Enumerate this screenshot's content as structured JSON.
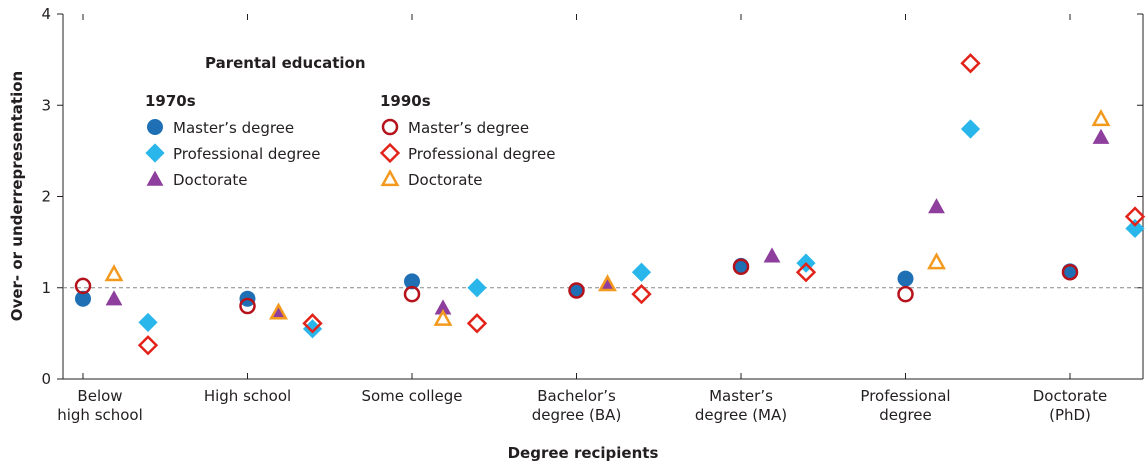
{
  "chart_data": {
    "type": "scatter",
    "x_label": "Degree recipients",
    "y_label": "Over- or underrepresentation",
    "categories": [
      "Below\nhigh school",
      "High school",
      "Some college",
      "Bachelor’s\ndegree (BA)",
      "Master’s\ndegree (MA)",
      "Professional\ndegree",
      "Doctorate\n(PhD)"
    ],
    "ylim": [
      0,
      4
    ],
    "yticks": [
      0,
      1,
      2,
      3,
      4
    ],
    "reference_line": 1,
    "legend": {
      "title": "Parental education",
      "groups": [
        {
          "label": "1970s",
          "series": [
            0,
            1,
            2
          ]
        },
        {
          "label": "1990s",
          "series": [
            3,
            4,
            5
          ]
        }
      ]
    },
    "series": [
      {
        "name": "Master’s degree",
        "marker": "circle",
        "filled": true,
        "color": "#1f6fb4",
        "values": [
          0.88,
          0.88,
          1.07,
          0.97,
          1.24,
          1.1,
          1.18
        ]
      },
      {
        "name": "Professional degree",
        "marker": "diamond",
        "filled": true,
        "color": "#29b6ea",
        "values": [
          0.62,
          0.55,
          1.0,
          1.17,
          1.27,
          2.74,
          1.65
        ]
      },
      {
        "name": "Doctorate",
        "marker": "triangle",
        "filled": true,
        "color": "#8e3e9c",
        "values": [
          0.88,
          0.73,
          0.78,
          1.04,
          1.35,
          1.89,
          2.65
        ]
      },
      {
        "name": "Master’s degree",
        "marker": "circle",
        "filled": false,
        "color": "#b5121b",
        "values": [
          1.02,
          0.8,
          0.93,
          0.97,
          1.23,
          0.93,
          1.17
        ]
      },
      {
        "name": "Professional degree",
        "marker": "diamond",
        "filled": false,
        "color": "#e2231a",
        "values": [
          0.37,
          0.61,
          0.61,
          0.93,
          1.17,
          3.46,
          1.78
        ]
      },
      {
        "name": "Doctorate",
        "marker": "triangle",
        "filled": false,
        "color": "#f39a1e",
        "values": [
          1.15,
          0.73,
          0.66,
          1.04,
          null,
          1.28,
          2.85
        ]
      }
    ]
  }
}
